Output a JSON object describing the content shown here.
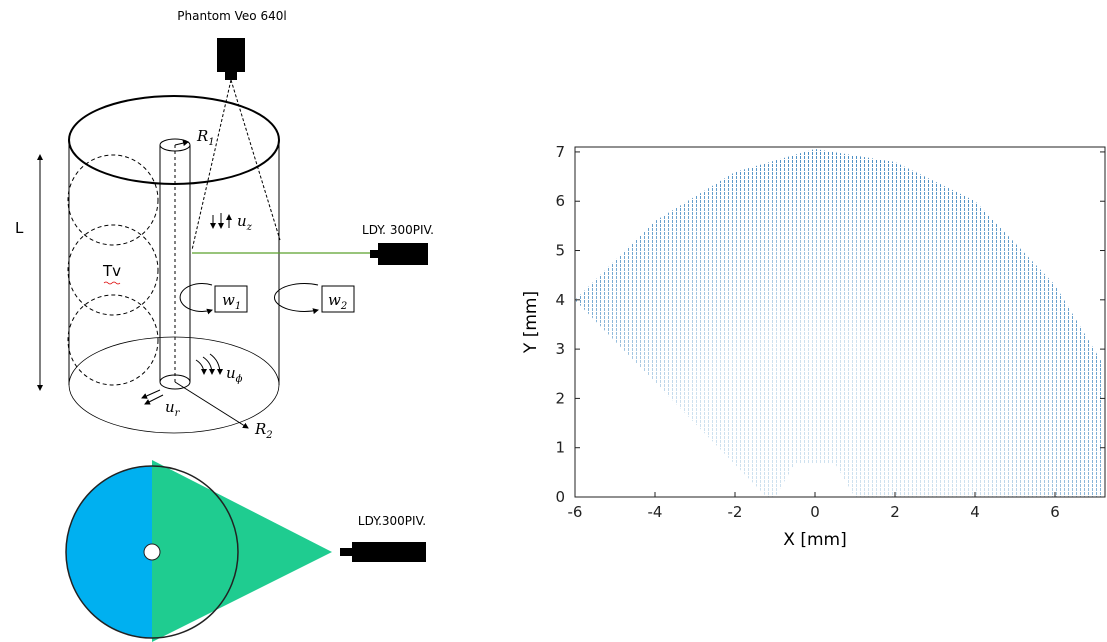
{
  "diagram": {
    "camera_label": "Phantom Veo 640l",
    "length_label": "L",
    "vortex_label": "Tv",
    "laser_label_top": "LDY. 300PIV.",
    "laser_label_bottom": "LDY.300PIV.",
    "r1": {
      "symbol": "R",
      "sub": "1"
    },
    "r2": {
      "symbol": "R",
      "sub": "2"
    },
    "uz": {
      "symbol": "u",
      "sub": "z"
    },
    "uphi": {
      "symbol": "u",
      "sub": "ϕ"
    },
    "ur": {
      "symbol": "u",
      "sub": "r"
    },
    "w1": {
      "symbol": "w",
      "sub": "1"
    },
    "w2": {
      "symbol": "w",
      "sub": "2"
    }
  },
  "plot": {
    "xlabel": "X [mm]",
    "ylabel": "Y [mm]",
    "xlim": [
      -6,
      7.25
    ],
    "ylim": [
      0,
      7.1
    ],
    "xticks": [
      -6,
      -4,
      -2,
      0,
      2,
      4,
      6
    ],
    "yticks": [
      0,
      1,
      2,
      3,
      4,
      5,
      6,
      7
    ]
  }
}
